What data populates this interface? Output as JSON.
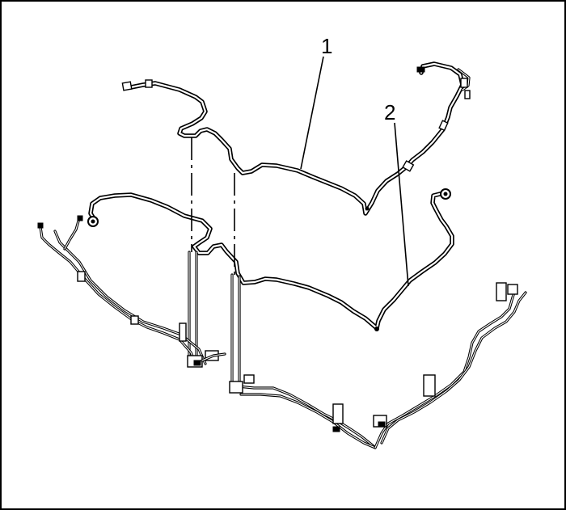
{
  "callouts": [
    {
      "id": "1",
      "label": "1"
    },
    {
      "id": "2",
      "label": "2"
    }
  ],
  "colors": {
    "line": "#000000",
    "background": "#ffffff"
  }
}
